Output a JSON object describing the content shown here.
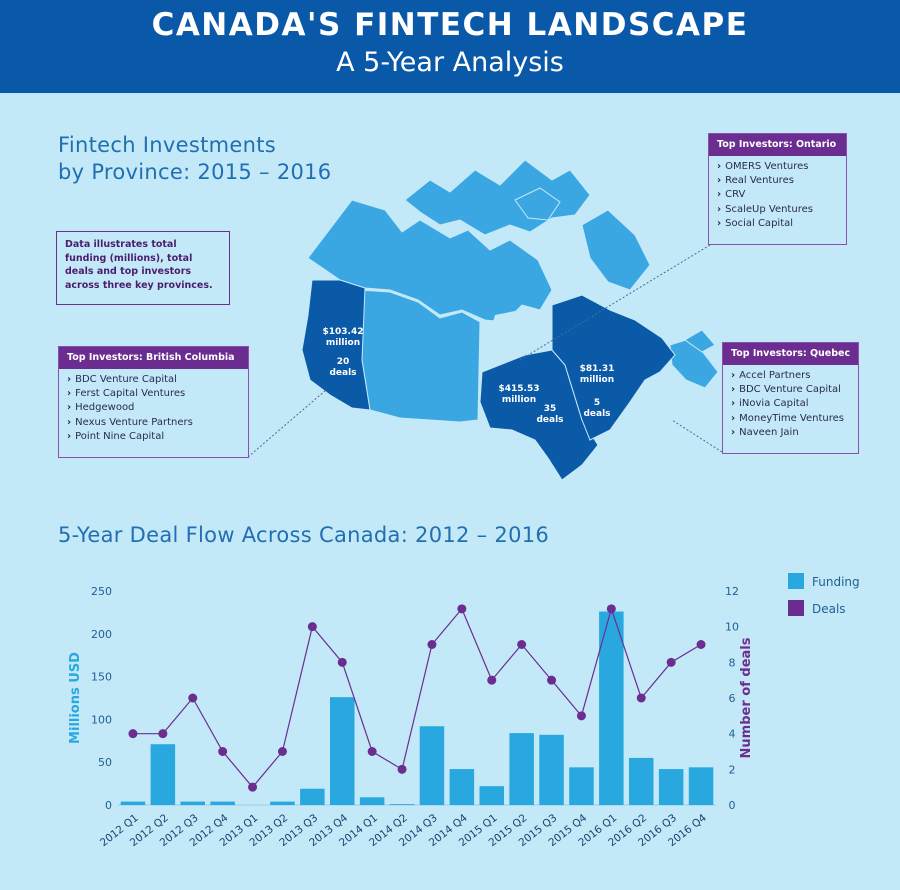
{
  "header": {
    "title": "CANADA'S FINTECH LANDSCAPE",
    "subtitle": "A 5-Year Analysis"
  },
  "map_section": {
    "title_line1": "Fintech Investments",
    "title_line2": "by Province: 2015 – 2016",
    "note": "Data illustrates total funding (millions), total deals and top investors across three key provinces.",
    "provinces": {
      "bc": {
        "funding": "$103.42",
        "unit": "million",
        "deals_count": "20",
        "deals_word": "deals"
      },
      "ontario": {
        "funding": "$415.53",
        "unit": "million",
        "deals_count": "35",
        "deals_word": "deals"
      },
      "quebec": {
        "funding": "$81.31",
        "unit": "million",
        "deals_count": "5",
        "deals_word": "deals"
      }
    },
    "investors": {
      "ontario": {
        "header": "Top Investors: Ontario",
        "items": [
          "OMERS Ventures",
          "Real Ventures",
          "CRV",
          "ScaleUp Ventures",
          "Social Capital"
        ]
      },
      "bc": {
        "header": "Top Investors: British Columbia",
        "items": [
          "BDC Venture Capital",
          "Ferst Capital Ventures",
          "Hedgewood",
          "Nexus Venture Partners",
          "Point Nine Capital"
        ]
      },
      "quebec": {
        "header": "Top Investors: Quebec",
        "items": [
          "Accel Partners",
          "BDC Venture Capital",
          "iNovia Capital",
          "MoneyTime Ventures",
          "Naveen Jain"
        ]
      }
    },
    "chevron": "›",
    "colors": {
      "map_light": "#3aa6e2",
      "map_dark": "#0b5aa8",
      "investor_header": "#6b2d8f"
    }
  },
  "chart_section": {
    "title": "5-Year Deal Flow Across Canada: 2012 – 2016"
  },
  "chart_data": {
    "type": "bar",
    "categories": [
      "2012 Q1",
      "2012 Q2",
      "2012 Q3",
      "2012 Q4",
      "2013 Q1",
      "2013 Q2",
      "2013 Q3",
      "2013 Q4",
      "2014 Q1",
      "2014 Q2",
      "2014 Q3",
      "2014 Q4",
      "2015 Q1",
      "2015 Q2",
      "2015 Q3",
      "2015 Q4",
      "2016 Q1",
      "2016 Q2",
      "2016 Q3",
      "2016 Q4"
    ],
    "series": [
      {
        "name": "Funding",
        "type": "bar",
        "axis": "left",
        "color": "#29a8e0",
        "values": [
          4,
          71,
          4,
          4,
          0,
          4,
          19,
          126,
          9,
          1,
          92,
          42,
          22,
          84,
          82,
          44,
          226,
          55,
          42,
          44
        ]
      },
      {
        "name": "Deals",
        "type": "line",
        "axis": "right",
        "color": "#6b2d8f",
        "values": [
          4,
          4,
          6,
          3,
          1,
          3,
          10,
          8,
          3,
          2,
          9,
          11,
          7,
          9,
          7,
          5,
          11,
          6,
          8,
          9
        ]
      }
    ],
    "ylabel": "Millions USD",
    "ylim": [
      0,
      250
    ],
    "yticks": [
      0,
      50,
      100,
      150,
      200,
      250
    ],
    "y2label": "Number of deals",
    "y2lim": [
      0,
      12
    ],
    "y2ticks": [
      0,
      2,
      4,
      6,
      8,
      10,
      12
    ],
    "legend_position": "top-right",
    "grid": false
  }
}
